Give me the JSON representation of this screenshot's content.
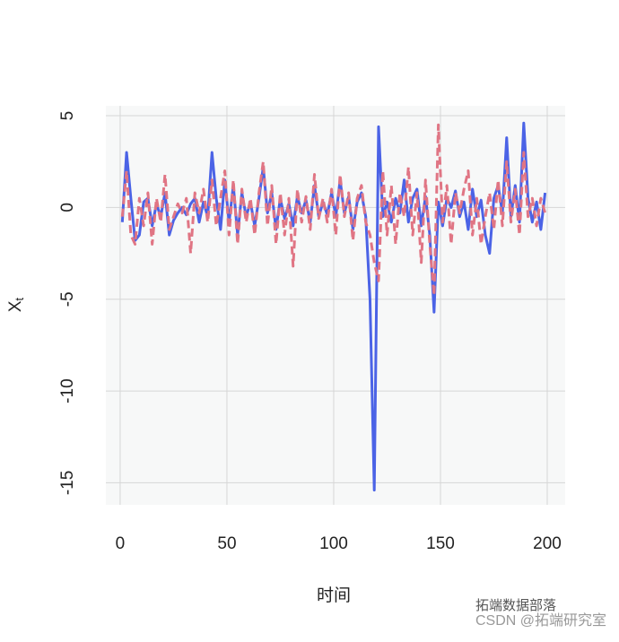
{
  "chart_data": {
    "type": "line",
    "x_label": "时间",
    "y_label": "X",
    "y_label_sub": "t",
    "x": [
      1,
      3,
      5,
      7,
      9,
      11,
      13,
      15,
      17,
      19,
      21,
      23,
      25,
      27,
      29,
      31,
      33,
      35,
      37,
      39,
      41,
      43,
      45,
      47,
      49,
      51,
      53,
      55,
      57,
      59,
      61,
      63,
      65,
      67,
      69,
      71,
      73,
      75,
      77,
      79,
      81,
      83,
      85,
      87,
      89,
      91,
      93,
      95,
      97,
      99,
      101,
      103,
      105,
      107,
      109,
      111,
      113,
      115,
      117,
      119,
      121,
      123,
      125,
      127,
      129,
      131,
      133,
      135,
      137,
      139,
      141,
      143,
      145,
      147,
      149,
      151,
      153,
      155,
      157,
      159,
      161,
      163,
      165,
      167,
      169,
      171,
      173,
      175,
      177,
      179,
      181,
      183,
      185,
      187,
      189,
      191,
      193,
      195,
      197,
      199
    ],
    "series": [
      {
        "color": "#4b63e6",
        "dash": false,
        "values": [
          -0.8,
          3.0,
          0.5,
          -1.8,
          -1.5,
          0.3,
          0.5,
          -1.0,
          0.2,
          -0.5,
          0.8,
          -1.5,
          -0.7,
          -0.3,
          0.0,
          -0.4,
          0.2,
          0.5,
          -0.8,
          0.3,
          -0.5,
          3.0,
          0.5,
          -1.2,
          1.5,
          -0.8,
          1.2,
          -1.5,
          0.8,
          -0.5,
          0.3,
          -1.0,
          0.5,
          2.2,
          -0.3,
          0.8,
          -1.2,
          0.5,
          -0.6,
          0.2,
          -1.0,
          0.6,
          -0.3,
          0.4,
          -0.8,
          1.2,
          -0.5,
          0.3,
          -0.4,
          0.8,
          -0.5,
          1.5,
          -0.3,
          0.6,
          -1.2,
          0.3,
          0.8,
          -0.5,
          -5.0,
          -15.4,
          4.4,
          -0.5,
          0.3,
          -0.8,
          0.5,
          -0.3,
          1.5,
          -0.8,
          0.5,
          1.0,
          -1.0,
          0.6,
          -1.5,
          -5.7,
          0.3,
          -1.0,
          0.5,
          0.0,
          0.9,
          -0.5,
          0.3,
          -1.2,
          1.0,
          -0.5,
          0.4,
          -1.5,
          -2.5,
          0.5,
          1.2,
          -0.3,
          3.8,
          -0.5,
          1.2,
          -0.8,
          4.6,
          0.5,
          -0.8,
          0.3,
          -1.2,
          0.8
        ]
      },
      {
        "color": "#e07584",
        "dash": true,
        "values": [
          -0.5,
          2.0,
          -1.5,
          -2.0,
          0.5,
          -1.0,
          0.8,
          -2.0,
          0.5,
          -0.8,
          1.8,
          -1.2,
          -0.5,
          0.2,
          -0.3,
          0.5,
          -2.5,
          0.8,
          -0.3,
          1.0,
          -0.8,
          1.5,
          -1.0,
          0.5,
          2.0,
          -1.5,
          1.5,
          -2.0,
          1.0,
          -0.8,
          0.5,
          -1.5,
          0.8,
          2.5,
          -1.0,
          1.2,
          -2.0,
          0.8,
          -1.5,
          0.5,
          -3.2,
          1.0,
          -0.8,
          0.6,
          -1.2,
          1.8,
          -0.6,
          0.5,
          -0.8,
          1.0,
          -1.5,
          1.8,
          -0.5,
          0.8,
          -1.8,
          0.5,
          1.2,
          -0.8,
          -1.5,
          -3.0,
          -4.0,
          2.0,
          -1.5,
          1.2,
          -2.0,
          0.8,
          -0.5,
          2.2,
          -1.5,
          0.8,
          -3.0,
          1.5,
          -2.0,
          -4.8,
          4.5,
          -0.8,
          1.2,
          -2.0,
          0.8,
          -0.3,
          1.0,
          2.0,
          -1.5,
          0.5,
          -2.0,
          -0.5,
          0.8,
          -1.2,
          1.5,
          -1.0,
          2.5,
          -0.8,
          1.0,
          -1.5,
          3.0,
          -0.5,
          0.5,
          -1.0,
          0.5,
          -0.3
        ]
      }
    ],
    "xlim": [
      -6.7,
      208.4
    ],
    "ylim": [
      -16.2,
      5.54
    ],
    "xticks": [
      0,
      50,
      100,
      150,
      200
    ],
    "yticks": [
      -15,
      -10,
      -5,
      0,
      5
    ],
    "grid": true
  },
  "watermark": {
    "line1": "拓端数据部落",
    "line2": "CSDN @拓端研究室"
  }
}
